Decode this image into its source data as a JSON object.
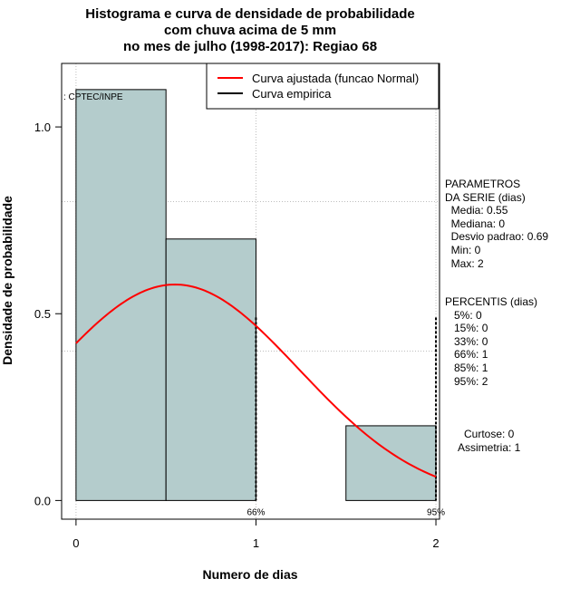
{
  "chart_data": {
    "type": "histogram",
    "title_lines": [
      "Histograma e curva de densidade de probabilidade",
      "com chuva acima de 5 mm",
      "no mes de julho (1998-2017): Regiao 68"
    ],
    "xlabel": "Numero de dias",
    "ylabel": "Densidade de probabilidade",
    "xlim": [
      -0.08,
      2.02
    ],
    "ylim": [
      -0.05,
      1.17
    ],
    "x_ticks": [
      0,
      1,
      2
    ],
    "x_tick_labels": [
      "0",
      "1",
      "2"
    ],
    "y_ticks": [
      0.0,
      0.5,
      1.0
    ],
    "y_tick_labels": [
      "0.0",
      "0.5",
      "1.0"
    ],
    "grid_x": [
      0,
      1,
      2
    ],
    "grid_y": [
      0.4,
      0.8
    ],
    "bars": [
      {
        "x0": 0.0,
        "x1": 0.5,
        "density": 1.1
      },
      {
        "x0": 0.5,
        "x1": 1.0,
        "density": 0.7
      },
      {
        "x0": 1.0,
        "x1": 1.5,
        "density": 0.0
      },
      {
        "x0": 1.5,
        "x1": 2.0,
        "density": 0.2
      }
    ],
    "fitted_curve": {
      "distribution": "normal",
      "mean": 0.55,
      "sd": 0.69,
      "x_from": 0,
      "x_to": 2
    },
    "percentile_markers": [
      {
        "x": 1,
        "label": "66%"
      },
      {
        "x": 2,
        "label": "95%"
      }
    ],
    "legend": {
      "position": "top-right",
      "entries": [
        {
          "label": "Curva ajustada (funcao Normal)",
          "color": "#ff0000"
        },
        {
          "label": "Curva empirica",
          "color": "#000000"
        }
      ]
    },
    "source_label": ": CPTEC/INPE",
    "colors": {
      "bar_fill": "#b4cccc",
      "curve": "#ff0000",
      "grid": "#bebebe"
    }
  },
  "stats_panel": {
    "params_lines": [
      "PARAMETROS",
      "DA SERIE (dias)",
      "  Media: 0.55",
      "  Mediana: 0",
      "  Desvio padrao: 0.69",
      "  Min: 0",
      "  Max: 2"
    ],
    "percentis_lines": [
      "PERCENTIS (dias)",
      "   5%: 0",
      "   15%: 0",
      "   33%: 0",
      "   66%: 1",
      "   85%: 1",
      "   95%: 2"
    ],
    "shape_lines": [
      "Curtose: 0",
      "Assimetria: 1"
    ]
  }
}
